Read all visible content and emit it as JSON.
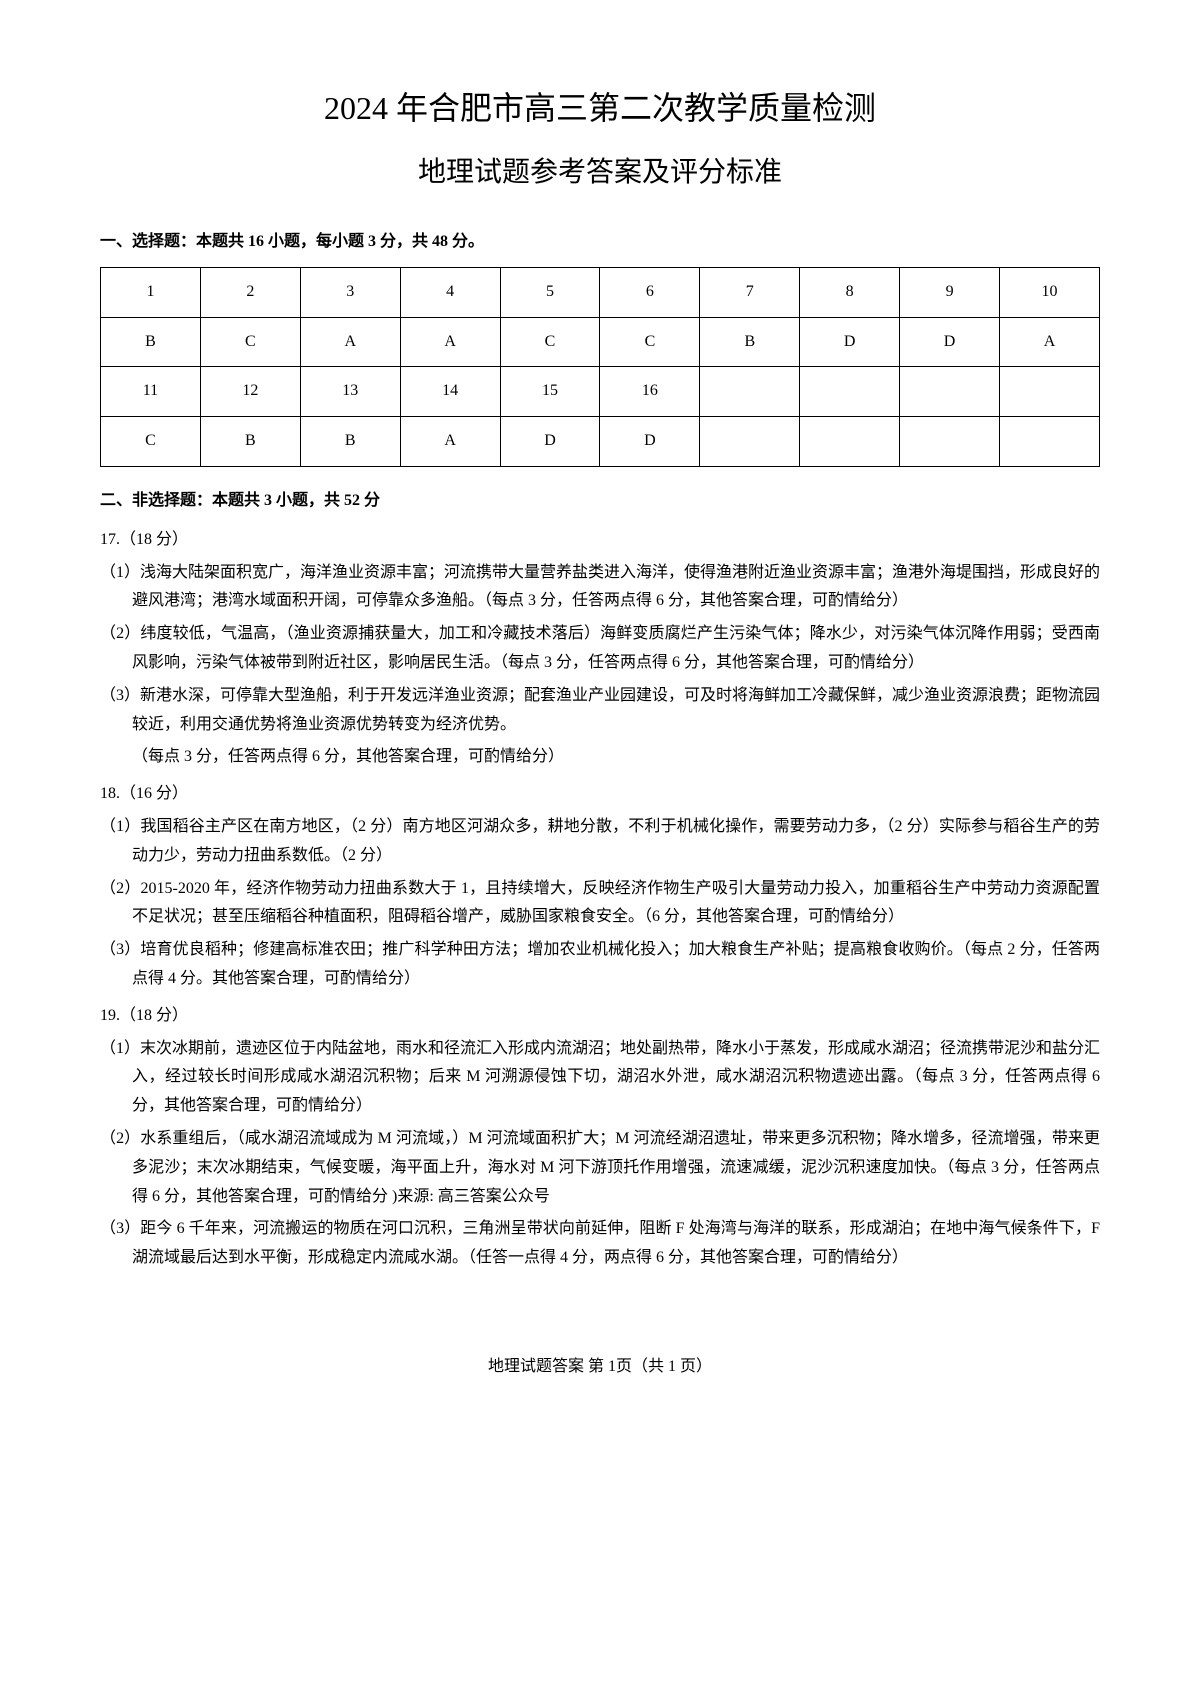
{
  "title_main": "2024 年合肥市高三第二次教学质量检测",
  "title_sub": "地理试题参考答案及评分标准",
  "section1_heading": "一、选择题：本题共 16 小题，每小题 3 分，共 48 分。",
  "answer_table": {
    "rows": [
      [
        "1",
        "2",
        "3",
        "4",
        "5",
        "6",
        "7",
        "8",
        "9",
        "10"
      ],
      [
        "B",
        "C",
        "A",
        "A",
        "C",
        "C",
        "B",
        "D",
        "D",
        "A"
      ],
      [
        "11",
        "12",
        "13",
        "14",
        "15",
        "16",
        "",
        "",
        "",
        ""
      ],
      [
        "C",
        "B",
        "B",
        "A",
        "D",
        "D",
        "",
        "",
        "",
        ""
      ]
    ],
    "border_color": "#000000",
    "cell_padding": 10,
    "font_size": 16
  },
  "section2_heading": "二、非选择题：本题共 3 小题，共 52 分",
  "q17": {
    "num": "17.（18 分）",
    "a1": "（1）浅海大陆架面积宽广，海洋渔业资源丰富；河流携带大量营养盐类进入海洋，使得渔港附近渔业资源丰富；渔港外海堤围挡，形成良好的避风港湾；港湾水域面积开阔，可停靠众多渔船。（每点 3 分，任答两点得 6 分，其他答案合理，可酌情给分）",
    "a2": "（2）纬度较低，气温高，（渔业资源捕获量大，加工和冷藏技术落后）海鲜变质腐烂产生污染气体；降水少，对污染气体沉降作用弱；受西南风影响，污染气体被带到附近社区，影响居民生活。（每点 3 分，任答两点得 6 分，其他答案合理，可酌情给分）",
    "a3": "（3）新港水深，可停靠大型渔船，利于开发远洋渔业资源；配套渔业产业园建设，可及时将海鲜加工冷藏保鲜，减少渔业资源浪费；距物流园较近，利用交通优势将渔业资源优势转变为经济优势。",
    "a3_note": "（每点 3 分，任答两点得 6 分，其他答案合理，可酌情给分）"
  },
  "q18": {
    "num": "18.（16 分）",
    "a1": "（1）我国稻谷主产区在南方地区，（2 分）南方地区河湖众多，耕地分散，不利于机械化操作，需要劳动力多，（2 分）实际参与稻谷生产的劳动力少，劳动力扭曲系数低。（2 分）",
    "a2": "（2）2015-2020 年，经济作物劳动力扭曲系数大于 1，且持续增大，反映经济作物生产吸引大量劳动力投入，加重稻谷生产中劳动力资源配置不足状况；甚至压缩稻谷种植面积，阻碍稻谷增产，威胁国家粮食安全。（6 分，其他答案合理，可酌情给分）",
    "a3": "（3）培育优良稻种；修建高标准农田；推广科学种田方法；增加农业机械化投入；加大粮食生产补贴；提高粮食收购价。（每点 2 分，任答两点得 4 分。其他答案合理，可酌情给分）"
  },
  "q19": {
    "num": "19.（18 分）",
    "a1": "（1）末次冰期前，遗迹区位于内陆盆地，雨水和径流汇入形成内流湖沼；地处副热带，降水小于蒸发，形成咸水湖沼；径流携带泥沙和盐分汇入，经过较长时间形成咸水湖沼沉积物；后来 M 河溯源侵蚀下切，湖沼水外泄，咸水湖沼沉积物遗迹出露。（每点 3 分，任答两点得 6 分，其他答案合理，可酌情给分）",
    "a2": "（2）水系重组后，（咸水湖沼流域成为 M 河流域，）M 河流域面积扩大；M 河流经湖沼遗址，带来更多沉积物；降水增多，径流增强，带来更多泥沙；末次冰期结束，气候变暖，海平面上升，海水对 M 河下游顶托作用增强，流速减缓，泥沙沉积速度加快。（每点 3 分，任答两点得 6 分，其他答案合理，可酌情给分 )来源: 高三答案公众号",
    "a3": "（3）距今 6 千年来，河流搬运的物质在河口沉积，三角洲呈带状向前延伸，阻断 F 处海湾与海洋的联系，形成湖泊；在地中海气候条件下，F 湖流域最后达到水平衡，形成稳定内流咸水湖。（任答一点得 4 分，两点得 6 分，其他答案合理，可酌情给分）"
  },
  "footer": "地理试题答案  第 1页（共 1 页）"
}
